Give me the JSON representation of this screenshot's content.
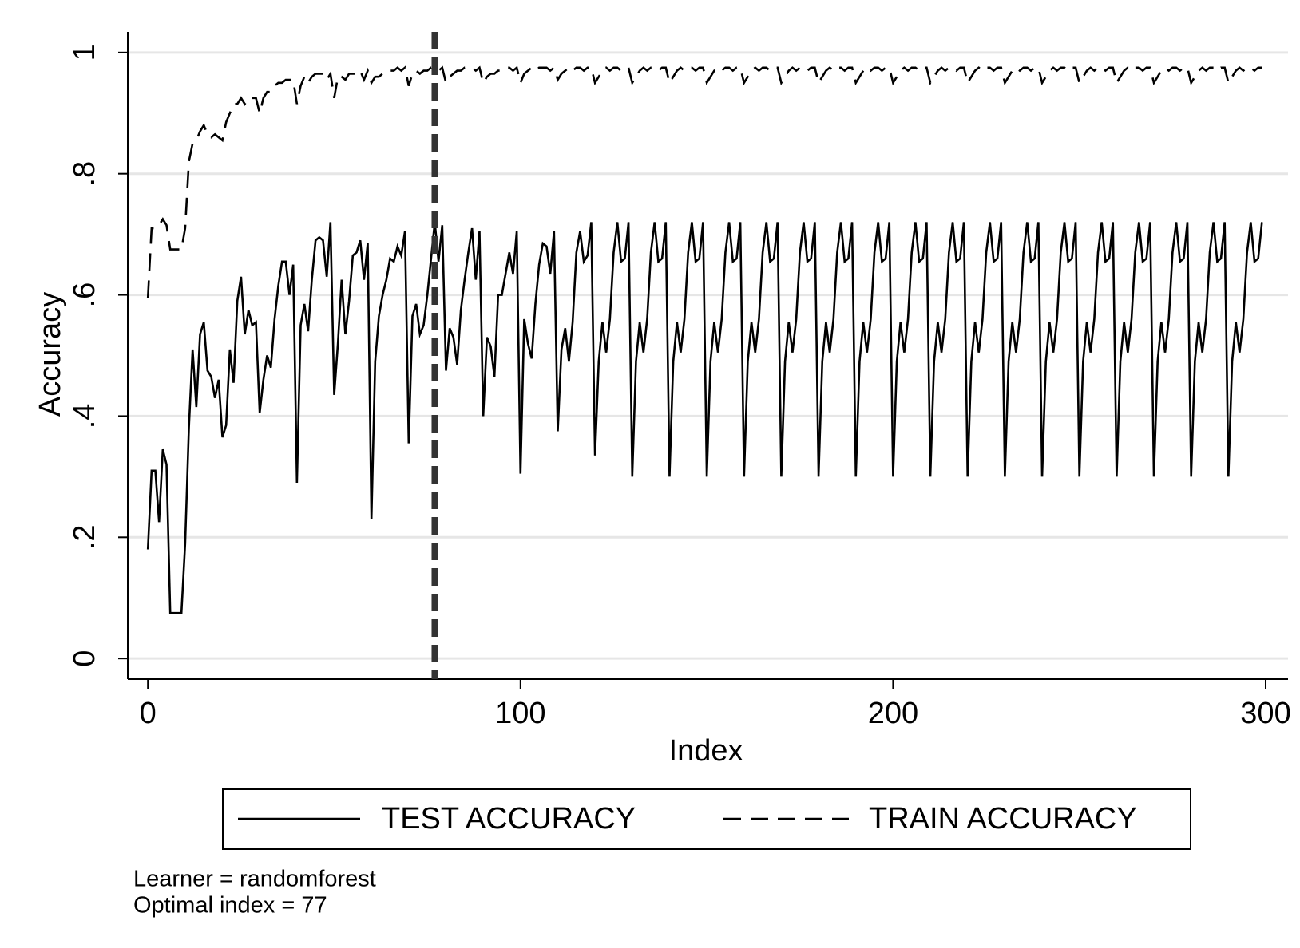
{
  "chart_data": {
    "type": "line",
    "xlabel": "Index",
    "ylabel": "Accuracy",
    "xlim": [
      -5.4,
      306
    ],
    "ylim": [
      -0.034,
      1.034
    ],
    "xticks": [
      0,
      100,
      200,
      300
    ],
    "yticks": [
      0,
      {
        "value": 0.2,
        "label": ".2"
      },
      {
        "value": 0.4,
        "label": ".4"
      },
      {
        "value": 0.6,
        "label": ".6"
      },
      {
        "value": 0.8,
        "label": ".8"
      },
      1
    ],
    "grid": true,
    "xline": {
      "value": 77,
      "color": "#333333",
      "dash": "dashed"
    },
    "notes": [
      "Learner = randomforest",
      "Optimal index = 77"
    ],
    "x": [
      0,
      1,
      2,
      3,
      4,
      5,
      6,
      7,
      8,
      9,
      10,
      11,
      12,
      13,
      14,
      15,
      16,
      17,
      18,
      19,
      20,
      21,
      22,
      23,
      24,
      25,
      26,
      27,
      28,
      29,
      30,
      31,
      32,
      33,
      34,
      35,
      36,
      37,
      38,
      39,
      40,
      41,
      42,
      43,
      44,
      45,
      46,
      47,
      48,
      49,
      50,
      51,
      52,
      53,
      54,
      55,
      56,
      57,
      58,
      59,
      60,
      61,
      62,
      63,
      64,
      65,
      66,
      67,
      68,
      69,
      70,
      71,
      72,
      73,
      74,
      75,
      76,
      77,
      78,
      79,
      80,
      81,
      82,
      83,
      84,
      85,
      86,
      87,
      88,
      89,
      90,
      91,
      92,
      93,
      94,
      95,
      96,
      97,
      98,
      99,
      100,
      101,
      102,
      103,
      104,
      105,
      106,
      107,
      108,
      109,
      110,
      111,
      112,
      113,
      114,
      115,
      116,
      117,
      118,
      119,
      120,
      121,
      122,
      123,
      124,
      125,
      126,
      127,
      128,
      129,
      130,
      131,
      132,
      133,
      134,
      135,
      136,
      137,
      138,
      139,
      140,
      141,
      142,
      143,
      144,
      145,
      146,
      147,
      148,
      149,
      150,
      151,
      152,
      153,
      154,
      155,
      156,
      157,
      158,
      159,
      160,
      161,
      162,
      163,
      164,
      165,
      166,
      167,
      168,
      169,
      170,
      171,
      172,
      173,
      174,
      175,
      176,
      177,
      178,
      179,
      180,
      181,
      182,
      183,
      184,
      185,
      186,
      187,
      188,
      189,
      190,
      191,
      192,
      193,
      194,
      195,
      196,
      197,
      198,
      199,
      200,
      201,
      202,
      203,
      204,
      205,
      206,
      207,
      208,
      209,
      210,
      211,
      212,
      213,
      214,
      215,
      216,
      217,
      218,
      219,
      220,
      221,
      222,
      223,
      224,
      225,
      226,
      227,
      228,
      229,
      230,
      231,
      232,
      233,
      234,
      235,
      236,
      237,
      238,
      239,
      240,
      241,
      242,
      243,
      244,
      245,
      246,
      247,
      248,
      249,
      250,
      251,
      252,
      253,
      254,
      255,
      256,
      257,
      258,
      259,
      260,
      261,
      262,
      263,
      264,
      265,
      266,
      267,
      268,
      269,
      270,
      271,
      272,
      273,
      274,
      275,
      276,
      277,
      278,
      279,
      280,
      281,
      282,
      283,
      284,
      285,
      286,
      287,
      288,
      289,
      290,
      291,
      292,
      293,
      294,
      295,
      296,
      297,
      298,
      299
    ],
    "series": [
      {
        "name": "TEST ACCURACY",
        "color": "#000000",
        "dash": "solid",
        "values": [
          0.18,
          0.31,
          0.31,
          0.225,
          0.345,
          0.32,
          0.075,
          0.075,
          0.075,
          0.075,
          0.19,
          0.38,
          0.51,
          0.415,
          0.535,
          0.555,
          0.475,
          0.465,
          0.43,
          0.46,
          0.365,
          0.385,
          0.51,
          0.455,
          0.59,
          0.63,
          0.535,
          0.575,
          0.55,
          0.555,
          0.405,
          0.46,
          0.5,
          0.48,
          0.56,
          0.615,
          0.655,
          0.655,
          0.6,
          0.65,
          0.29,
          0.55,
          0.585,
          0.54,
          0.625,
          0.69,
          0.695,
          0.69,
          0.63,
          0.72,
          0.435,
          0.52,
          0.625,
          0.535,
          0.59,
          0.665,
          0.67,
          0.69,
          0.625,
          0.685,
          0.23,
          0.49,
          0.565,
          0.6,
          0.625,
          0.66,
          0.655,
          0.68,
          0.665,
          0.705,
          0.355,
          0.565,
          0.585,
          0.535,
          0.55,
          0.6,
          0.66,
          0.72,
          0.655,
          0.715,
          0.475,
          0.545,
          0.53,
          0.485,
          0.575,
          0.625,
          0.67,
          0.71,
          0.625,
          0.705,
          0.4,
          0.53,
          0.515,
          0.465,
          0.6,
          0.6,
          0.635,
          0.67,
          0.635,
          0.705,
          0.305,
          0.56,
          0.52,
          0.495,
          0.585,
          0.65,
          0.685,
          0.68,
          0.635,
          0.705,
          0.375,
          0.51,
          0.545,
          0.49,
          0.555,
          0.67,
          0.705,
          0.655,
          0.665,
          0.72,
          0.335,
          0.49,
          0.555,
          0.505,
          0.56,
          0.67,
          0.72,
          0.655,
          0.66,
          0.72,
          0.3,
          0.49,
          0.555,
          0.505,
          0.56,
          0.67,
          0.72,
          0.655,
          0.66,
          0.72,
          0.3,
          0.49,
          0.555,
          0.505,
          0.56,
          0.67,
          0.72,
          0.655,
          0.66,
          0.72,
          0.3,
          0.49,
          0.555,
          0.505,
          0.56,
          0.67,
          0.72,
          0.655,
          0.66,
          0.72,
          0.3,
          0.49,
          0.555,
          0.505,
          0.56,
          0.67,
          0.72,
          0.655,
          0.66,
          0.72,
          0.3,
          0.49,
          0.555,
          0.505,
          0.56,
          0.67,
          0.72,
          0.655,
          0.66,
          0.72,
          0.3,
          0.49,
          0.555,
          0.505,
          0.56,
          0.67,
          0.72,
          0.655,
          0.66,
          0.72,
          0.3,
          0.49,
          0.555,
          0.505,
          0.56,
          0.67,
          0.72,
          0.655,
          0.66,
          0.72,
          0.3,
          0.49,
          0.555,
          0.505,
          0.56,
          0.67,
          0.72,
          0.655,
          0.66,
          0.72,
          0.3,
          0.49,
          0.555,
          0.505,
          0.56,
          0.67,
          0.72,
          0.655,
          0.66,
          0.72,
          0.3,
          0.49,
          0.555,
          0.505,
          0.56,
          0.67,
          0.72,
          0.655,
          0.66,
          0.72,
          0.3,
          0.49,
          0.555,
          0.505,
          0.56,
          0.67,
          0.72,
          0.655,
          0.66,
          0.72,
          0.3,
          0.49,
          0.555,
          0.505,
          0.56,
          0.67,
          0.72,
          0.655,
          0.66,
          0.72,
          0.3,
          0.49,
          0.555,
          0.505,
          0.56,
          0.67,
          0.72,
          0.655,
          0.66,
          0.72,
          0.3,
          0.49,
          0.555,
          0.505,
          0.56,
          0.67,
          0.72,
          0.655,
          0.66,
          0.72,
          0.3,
          0.49,
          0.555,
          0.505,
          0.56,
          0.67,
          0.72,
          0.655,
          0.66,
          0.72,
          0.3,
          0.49,
          0.555,
          0.505,
          0.56,
          0.67,
          0.72,
          0.655,
          0.66,
          0.72,
          0.3,
          0.49,
          0.555,
          0.505,
          0.56,
          0.67,
          0.72,
          0.655,
          0.66,
          0.72
        ]
      },
      {
        "name": "TRAIN ACCURACY",
        "color": "#000000",
        "dash": "dashed",
        "values": [
          0.595,
          0.71,
          0.71,
          0.715,
          0.725,
          0.715,
          0.675,
          0.675,
          0.675,
          0.675,
          0.71,
          0.82,
          0.85,
          0.855,
          0.87,
          0.88,
          0.865,
          0.86,
          0.865,
          0.86,
          0.855,
          0.885,
          0.9,
          0.915,
          0.915,
          0.925,
          0.915,
          0.925,
          0.925,
          0.925,
          0.9,
          0.925,
          0.935,
          0.935,
          0.945,
          0.95,
          0.95,
          0.955,
          0.955,
          0.955,
          0.915,
          0.945,
          0.96,
          0.95,
          0.96,
          0.965,
          0.965,
          0.965,
          0.955,
          0.965,
          0.925,
          0.96,
          0.96,
          0.955,
          0.965,
          0.965,
          0.965,
          0.97,
          0.955,
          0.97,
          0.95,
          0.96,
          0.96,
          0.965,
          0.97,
          0.97,
          0.97,
          0.975,
          0.97,
          0.975,
          0.945,
          0.965,
          0.97,
          0.965,
          0.97,
          0.97,
          0.975,
          0.975,
          0.97,
          0.975,
          0.95,
          0.96,
          0.965,
          0.97,
          0.97,
          0.975,
          0.975,
          0.975,
          0.97,
          0.975,
          0.95,
          0.96,
          0.965,
          0.965,
          0.97,
          0.97,
          0.975,
          0.975,
          0.97,
          0.975,
          0.95,
          0.965,
          0.97,
          0.975,
          0.97,
          0.975,
          0.975,
          0.975,
          0.97,
          0.975,
          0.955,
          0.965,
          0.97,
          0.975,
          0.97,
          0.975,
          0.975,
          0.97,
          0.975,
          0.975,
          0.95,
          0.96,
          0.97,
          0.975,
          0.97,
          0.975,
          0.975,
          0.97,
          0.975,
          0.975,
          0.95,
          0.96,
          0.97,
          0.975,
          0.97,
          0.975,
          0.975,
          0.97,
          0.975,
          0.975,
          0.95,
          0.96,
          0.97,
          0.975,
          0.97,
          0.975,
          0.975,
          0.97,
          0.975,
          0.975,
          0.95,
          0.96,
          0.97,
          0.975,
          0.97,
          0.975,
          0.975,
          0.97,
          0.975,
          0.975,
          0.95,
          0.96,
          0.97,
          0.975,
          0.97,
          0.975,
          0.975,
          0.97,
          0.975,
          0.975,
          0.95,
          0.96,
          0.97,
          0.975,
          0.97,
          0.975,
          0.975,
          0.97,
          0.975,
          0.975,
          0.95,
          0.96,
          0.97,
          0.975,
          0.97,
          0.975,
          0.975,
          0.97,
          0.975,
          0.975,
          0.95,
          0.96,
          0.97,
          0.975,
          0.97,
          0.975,
          0.975,
          0.97,
          0.975,
          0.975,
          0.95,
          0.96,
          0.97,
          0.975,
          0.97,
          0.975,
          0.975,
          0.97,
          0.975,
          0.975,
          0.95,
          0.96,
          0.97,
          0.975,
          0.97,
          0.975,
          0.975,
          0.97,
          0.975,
          0.975,
          0.95,
          0.96,
          0.97,
          0.975,
          0.97,
          0.975,
          0.975,
          0.97,
          0.975,
          0.975,
          0.95,
          0.96,
          0.97,
          0.975,
          0.97,
          0.975,
          0.975,
          0.97,
          0.975,
          0.975,
          0.95,
          0.96,
          0.97,
          0.975,
          0.97,
          0.975,
          0.975,
          0.97,
          0.975,
          0.975,
          0.95,
          0.96,
          0.97,
          0.975,
          0.97,
          0.975,
          0.975,
          0.97,
          0.975,
          0.975,
          0.95,
          0.96,
          0.97,
          0.975,
          0.97,
          0.975,
          0.975,
          0.97,
          0.975,
          0.975,
          0.95,
          0.96,
          0.97,
          0.975,
          0.97,
          0.975,
          0.975,
          0.97,
          0.975,
          0.975,
          0.95,
          0.96,
          0.97,
          0.975,
          0.97,
          0.975,
          0.975,
          0.97,
          0.975,
          0.975,
          0.95,
          0.96,
          0.97,
          0.975,
          0.97,
          0.975,
          0.975,
          0.97,
          0.975,
          0.975
        ]
      }
    ]
  }
}
